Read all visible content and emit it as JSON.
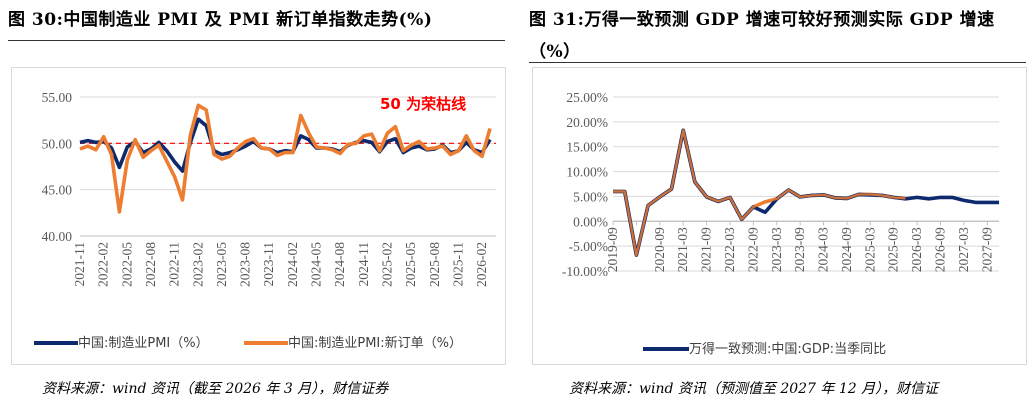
{
  "panels": {
    "left": {
      "title": "图 30:中国制造业 PMI 及 PMI 新订单指数走势(%)",
      "source": "资料来源：wind 资讯（截至 2026 年 3 月），财信证券"
    },
    "right": {
      "title": "图 31:万得一致预测 GDP 增速可较好预测实际 GDP 增速（%）",
      "source": "资料来源：wind 资讯（预测值至 2027 年 12 月），财信证"
    }
  },
  "colors": {
    "navy": "#0d2a6e",
    "orange": "#ed7d31",
    "red": "#ff0000",
    "grid": "#d9d9d9",
    "axis": "#bfbfbf"
  },
  "chart_data": [
    {
      "type": "line",
      "annotation": "50 为荣枯线",
      "reference_line": 50,
      "ylim": [
        40,
        55
      ],
      "yticks": [
        "40.00",
        "45.00",
        "50.00",
        "55.00"
      ],
      "ytick_values": [
        40,
        45,
        50,
        55
      ],
      "xtick_labels": [
        "2021-11",
        "2022-02",
        "2022-05",
        "2022-08",
        "2022-11",
        "2023-02",
        "2023-05",
        "2023-08",
        "2023-11",
        "2024-02",
        "2024-05",
        "2024-08",
        "2024-11",
        "2025-02",
        "2025-05",
        "2025-08",
        "2025-11",
        "2026-02"
      ],
      "x": [
        "2021-11",
        "2021-12",
        "2022-01",
        "2022-02",
        "2022-03",
        "2022-04",
        "2022-05",
        "2022-06",
        "2022-07",
        "2022-08",
        "2022-09",
        "2022-10",
        "2022-11",
        "2022-12",
        "2023-01",
        "2023-02",
        "2023-03",
        "2023-04",
        "2023-05",
        "2023-06",
        "2023-07",
        "2023-08",
        "2023-09",
        "2023-10",
        "2023-11",
        "2023-12",
        "2024-01",
        "2024-02",
        "2024-03",
        "2024-04",
        "2024-05",
        "2024-06",
        "2024-07",
        "2024-08",
        "2024-09",
        "2024-10",
        "2024-11",
        "2024-12",
        "2025-01",
        "2025-02",
        "2025-03",
        "2025-04",
        "2025-05",
        "2025-06",
        "2025-07",
        "2025-08",
        "2025-09",
        "2025-10",
        "2025-11",
        "2025-12",
        "2026-01",
        "2026-02",
        "2026-03"
      ],
      "series": [
        {
          "name": "中国:制造业PMI（%）",
          "color": "#0d2a6e",
          "values": [
            50.1,
            50.3,
            50.1,
            50.2,
            49.5,
            47.4,
            49.6,
            50.2,
            49.0,
            49.4,
            50.1,
            49.2,
            48.0,
            47.0,
            50.1,
            52.6,
            51.9,
            49.2,
            48.8,
            49.0,
            49.3,
            49.7,
            50.2,
            49.5,
            49.4,
            49.0,
            49.2,
            49.1,
            50.8,
            50.4,
            49.5,
            49.5,
            49.4,
            49.1,
            49.8,
            50.1,
            50.3,
            50.1,
            49.1,
            50.2,
            50.5,
            49.0,
            49.5,
            49.7,
            49.3,
            49.4,
            49.8,
            49.0,
            49.2,
            50.1,
            49.3,
            49.0,
            50.4
          ]
        },
        {
          "name": "中国:制造业PMI:新订单（%）",
          "color": "#ed7d31",
          "values": [
            49.4,
            49.7,
            49.3,
            50.7,
            48.8,
            42.6,
            48.2,
            50.4,
            48.5,
            49.2,
            49.8,
            48.1,
            46.4,
            43.9,
            50.9,
            54.1,
            53.6,
            48.8,
            48.3,
            48.6,
            49.5,
            50.2,
            50.5,
            49.5,
            49.4,
            48.7,
            49.0,
            49.0,
            53.0,
            51.1,
            49.6,
            49.5,
            49.3,
            48.9,
            49.9,
            50.0,
            50.8,
            51.0,
            49.2,
            51.1,
            51.8,
            49.2,
            49.8,
            50.2,
            49.4,
            49.5,
            49.7,
            48.8,
            49.2,
            50.8,
            49.2,
            48.6,
            51.6
          ]
        }
      ]
    },
    {
      "type": "line",
      "ylim": [
        -10,
        25
      ],
      "yticks": [
        "-10.00%",
        "-5.00%",
        "0.00%",
        "5.00%",
        "10.00%",
        "15.00%",
        "20.00%",
        "25.00%"
      ],
      "ytick_values": [
        -10,
        -5,
        0,
        5,
        10,
        15,
        20,
        25
      ],
      "xtick_labels": [
        "2019-09",
        "2020-09",
        "2021-03",
        "2021-09",
        "2022-03",
        "2022-09",
        "2023-03",
        "2023-09",
        "2024-03",
        "2024-09",
        "2025-03",
        "2025-09",
        "2026-03",
        "2026-09",
        "2027-03",
        "2027-09"
      ],
      "xtick_quarters": [
        0,
        4,
        6,
        8,
        10,
        12,
        14,
        16,
        18,
        20,
        22,
        24,
        26,
        28,
        30,
        32
      ],
      "series": [
        {
          "name": "万得一致预测:中国:GDP:当季同比",
          "color": "#0d2a6e",
          "values": [
            6.0,
            6.0,
            -6.8,
            3.2,
            4.9,
            6.5,
            18.3,
            7.9,
            4.9,
            4.0,
            4.8,
            0.4,
            2.9,
            1.8,
            4.5,
            6.3,
            4.9,
            5.2,
            5.3,
            4.7,
            4.6,
            5.4,
            5.3,
            5.2,
            4.8,
            4.5,
            4.8,
            4.5,
            4.8,
            4.8,
            4.2,
            3.8,
            3.8,
            3.8
          ]
        },
        {
          "name": "",
          "color": "#ed7d31",
          "values": [
            6.0,
            6.0,
            -6.8,
            3.2,
            4.9,
            6.5,
            18.3,
            7.9,
            4.9,
            4.0,
            4.8,
            0.4,
            2.9,
            3.9,
            4.5,
            6.3,
            4.9,
            5.2,
            5.3,
            4.7,
            4.6,
            5.4,
            5.4,
            5.2,
            4.8,
            4.6
          ]
        }
      ]
    }
  ]
}
